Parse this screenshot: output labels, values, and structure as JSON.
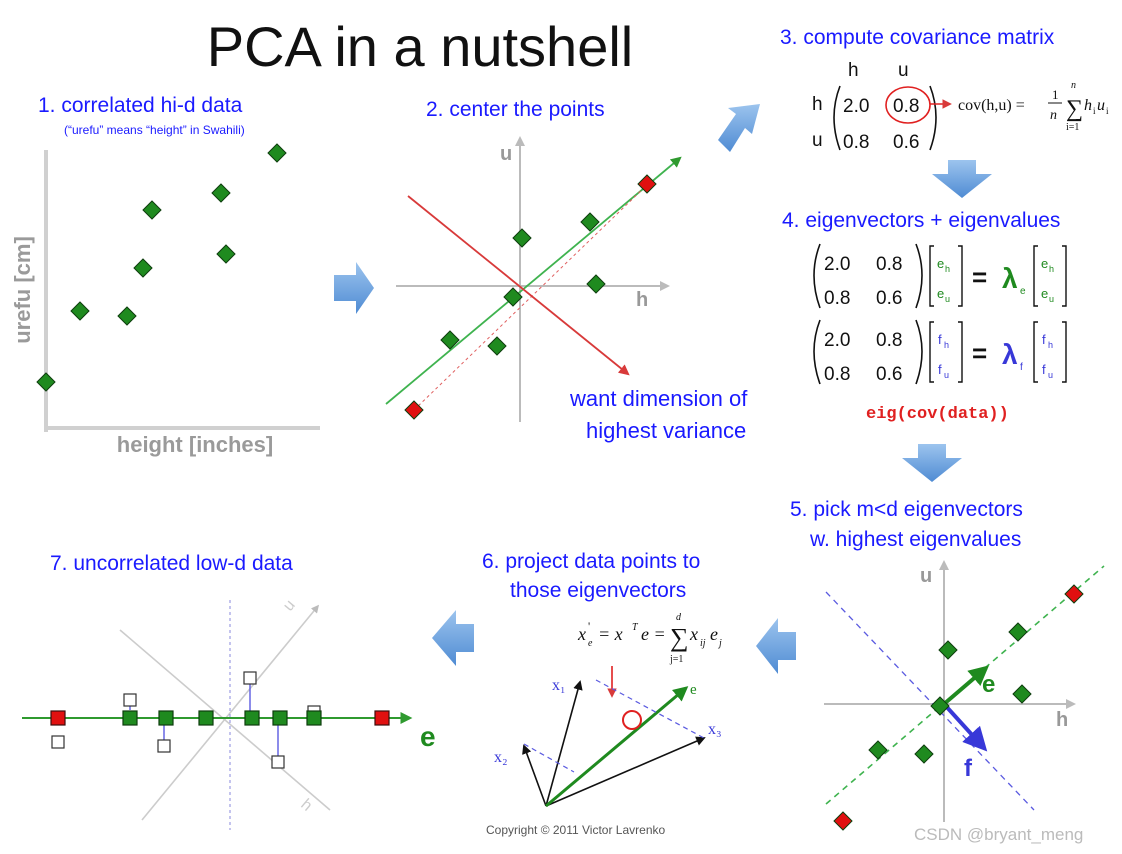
{
  "title": "PCA in a nutshell",
  "steps": {
    "s1": "1. correlated hi-d data",
    "s1_note": "(“urefu” means “height” in Swahili)",
    "s2": "2. center the points",
    "s3": "3. compute covariance matrix",
    "s4": "4. eigenvectors + eigenvalues",
    "s5a": "5. pick m<d eigenvectors",
    "s5b": "w. highest eigenvalues",
    "s6a": "6. project data points to",
    "s6b": "those eigenvectors",
    "s7": "7. uncorrelated low-d data"
  },
  "panel1": {
    "ylabel": "urefu [cm]",
    "xlabel": "height [inches]"
  },
  "panel2": {
    "axis_u": "u",
    "axis_h": "h",
    "note_line1": "want dimension of",
    "note_line2": "highest variance"
  },
  "cov": {
    "col_h": "h",
    "col_u": "u",
    "row_h": "h",
    "row_u": "u",
    "m11": "2.0",
    "m12": "0.8",
    "m21": "0.8",
    "m22": "0.6",
    "formula_lhs": "cov(h,u) =",
    "frac_num": "1",
    "frac_den": "n",
    "sum_top": "n",
    "sum_bot": "i=1",
    "sum_term": "h",
    "sum_term_sub": "i",
    "sum_term2": "u",
    "sum_term2_sub": "i"
  },
  "eig": {
    "a11": "2.0",
    "a12": "0.8",
    "a21": "0.8",
    "a22": "0.6",
    "e_top": "e",
    "e_top_sub": "h",
    "e_bot": "e",
    "e_bot_sub": "u",
    "f_top": "f",
    "f_top_sub": "h",
    "f_bot": "f",
    "f_bot_sub": "u",
    "eq": "=",
    "lambda": "λ",
    "lambda_e_sub": "e",
    "lambda_f_sub": "f",
    "code": "eig(cov(data))"
  },
  "panel5": {
    "axis_u": "u",
    "axis_h": "h",
    "label_e": "e",
    "label_f": "f"
  },
  "panel6": {
    "formula_x": "x",
    "formula_x_sup": "'",
    "formula_x_sub": "e",
    "formula_eq1": "= x",
    "formula_T": "T",
    "formula_e": "e =",
    "sum_top": "d",
    "sum_bot": "j=1",
    "formula_term": "x",
    "formula_term_sub": "ij",
    "formula_term2": "e",
    "formula_term2_sub": "j",
    "lbl_x1": "x₁",
    "lbl_x2": "x₂",
    "lbl_x3": "x₃",
    "lbl_e": "e"
  },
  "panel7": {
    "label_e": "e",
    "axis_u": "u",
    "axis_h": "h"
  },
  "copyright": "Copyright © 2011 Victor Lavrenko",
  "watermark": "CSDN @bryant_meng",
  "colors": {
    "step_blue": "#1a1aff",
    "green_point": "#1f8a1f",
    "red_point": "#e01010",
    "axis_gray": "#aaaaaa",
    "arrow_blue": "#6aa0dc"
  }
}
